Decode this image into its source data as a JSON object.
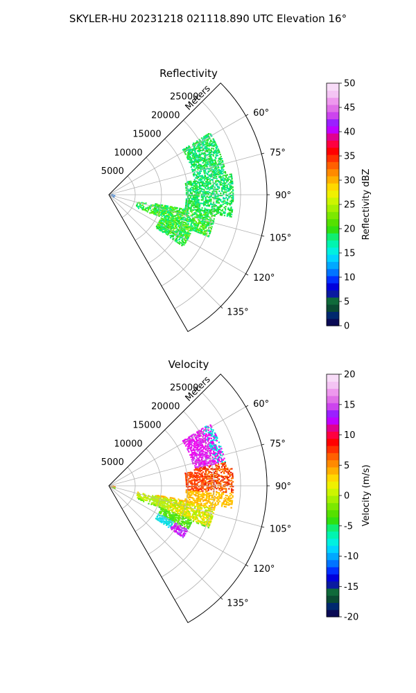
{
  "figure": {
    "title": "SKYLER-HU  20231218  021118.890 UTC Elevation 16°"
  },
  "chart_data": [
    {
      "type": "heatmap",
      "subtype": "polar-sector radar PPI",
      "title": "Reflectivity",
      "azimuth_range_deg": [
        45,
        150
      ],
      "azimuth_ticks": [
        "60°",
        "75°",
        "90°",
        "105°",
        "120°",
        "135°"
      ],
      "range_max_m": 30000,
      "range_ticks": [
        "5000",
        "10000",
        "15000",
        "20000",
        "25000"
      ],
      "range_axis_label": "Meters",
      "grid": true,
      "colorbar": {
        "label": "Reflectivity dBZ",
        "min": 0,
        "max": 50,
        "ticks": [
          "0",
          "5",
          "10",
          "15",
          "20",
          "25",
          "30",
          "35",
          "40",
          "45",
          "50"
        ],
        "colors": [
          "#0a0a55",
          "#00286e",
          "#0a4a32",
          "#0f6a3a",
          "#0a1aa0",
          "#0000dc",
          "#0030ff",
          "#0074ff",
          "#00a8ff",
          "#00d4ff",
          "#00f0e0",
          "#00f5b0",
          "#10ee70",
          "#30e010",
          "#55e000",
          "#7ce800",
          "#a6f000",
          "#ccf500",
          "#f0f000",
          "#ffd800",
          "#ffb000",
          "#ff8a00",
          "#ff6000",
          "#ff3000",
          "#ff0000",
          "#ff0040",
          "#e00090",
          "#c000ff",
          "#9a20ff",
          "#cc44ee",
          "#e070e8",
          "#ee98ee",
          "#f4c4f4",
          "#f8dcf8"
        ]
      },
      "echo_description_colors": [
        "#22dd22",
        "#44ee00",
        "#00ee88",
        "#00ddaa",
        "#66ee00",
        "#aaee22"
      ]
    },
    {
      "type": "heatmap",
      "subtype": "polar-sector radar PPI",
      "title": "Velocity",
      "azimuth_range_deg": [
        45,
        150
      ],
      "azimuth_ticks": [
        "60°",
        "75°",
        "90°",
        "105°",
        "120°",
        "135°"
      ],
      "range_max_m": 30000,
      "range_ticks": [
        "5000",
        "10000",
        "15000",
        "20000",
        "25000"
      ],
      "range_axis_label": "Meters",
      "grid": true,
      "colorbar": {
        "label": "Velocity (m/s)",
        "min": -20,
        "max": 20,
        "ticks": [
          "-20",
          "-15",
          "-10",
          "-5",
          "0",
          "5",
          "10",
          "15",
          "20"
        ],
        "colors": [
          "#0a0a55",
          "#00286e",
          "#0a4a32",
          "#0f6a3a",
          "#0a1aa0",
          "#0000dc",
          "#0030ff",
          "#0074ff",
          "#00a8ff",
          "#00d4ff",
          "#00f0e0",
          "#00f5b0",
          "#10ee70",
          "#30e010",
          "#55e000",
          "#7ce800",
          "#a6f000",
          "#ccf500",
          "#f0f000",
          "#ffd800",
          "#ffb000",
          "#ff8a00",
          "#ff6000",
          "#ff3000",
          "#ff0000",
          "#ff0040",
          "#e00090",
          "#c000ff",
          "#9a20ff",
          "#cc44ee",
          "#e070e8",
          "#ee98ee",
          "#f4c4f4",
          "#f8dcf8"
        ]
      }
    }
  ]
}
